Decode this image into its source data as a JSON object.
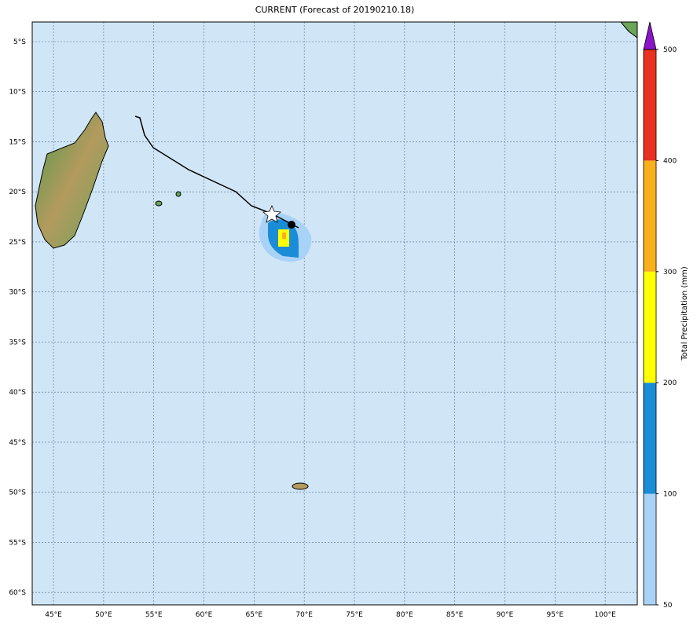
{
  "map": {
    "title": "CURRENT (Forecast of 20190210.18)",
    "lonlim": [
      42.88,
      103.2
    ],
    "latlim": [
      -61.24,
      -3.04
    ],
    "lonticks": [
      {
        "value": 45,
        "label": "45°E"
      },
      {
        "value": 50,
        "label": "50°E"
      },
      {
        "value": 55,
        "label": "55°E"
      },
      {
        "value": 60,
        "label": "60°E"
      },
      {
        "value": 65,
        "label": "65°E"
      },
      {
        "value": 70,
        "label": "70°E"
      },
      {
        "value": 75,
        "label": "75°E"
      },
      {
        "value": 80,
        "label": "80°E"
      },
      {
        "value": 85,
        "label": "85°E"
      },
      {
        "value": 90,
        "label": "90°E"
      },
      {
        "value": 95,
        "label": "95°E"
      },
      {
        "value": 100,
        "label": "100°E"
      }
    ],
    "latticks": [
      {
        "value": -5,
        "label": "5°S"
      },
      {
        "value": -10,
        "label": "10°S"
      },
      {
        "value": -15,
        "label": "15°S"
      },
      {
        "value": -20,
        "label": "20°S"
      },
      {
        "value": -25,
        "label": "25°S"
      },
      {
        "value": -30,
        "label": "30°S"
      },
      {
        "value": -35,
        "label": "35°S"
      },
      {
        "value": -40,
        "label": "40°S"
      },
      {
        "value": -45,
        "label": "45°S"
      },
      {
        "value": -50,
        "label": "50°S"
      },
      {
        "value": -55,
        "label": "55°S"
      },
      {
        "value": -60,
        "label": "60°S"
      }
    ],
    "colorbar": {
      "label": "Total Precipitation (mm)",
      "levels": [
        50,
        100,
        200,
        300,
        400,
        500
      ],
      "colors": [
        "#a9d2f7",
        "#1b8cd6",
        "#ffff00",
        "#f8b01c",
        "#e8321f"
      ],
      "extend_color": "#8b14c9"
    }
  }
}
